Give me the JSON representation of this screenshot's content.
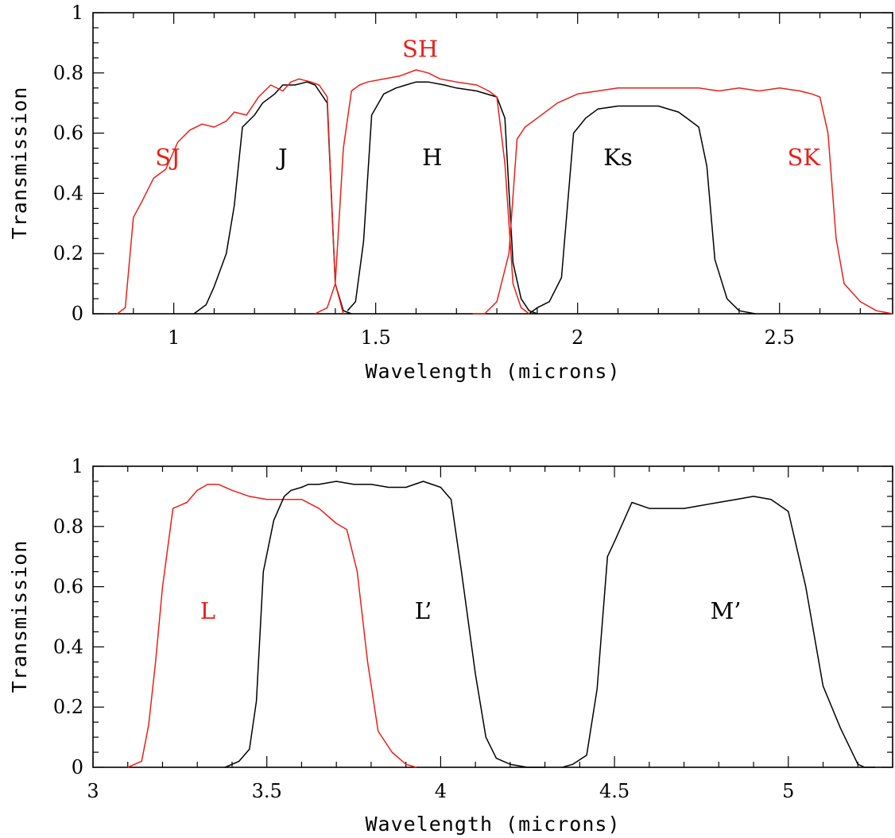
{
  "chart_data": [
    {
      "type": "line",
      "xlabel": "Wavelength (microns)",
      "ylabel": "Transmission",
      "xlim": [
        0.8,
        2.78
      ],
      "ylim": [
        0,
        1
      ],
      "xticks": [
        1,
        1.5,
        2,
        2.5
      ],
      "xtick_labels": [
        "1",
        "1.5",
        "2",
        "2.5"
      ],
      "yticks": [
        0,
        0.2,
        0.4,
        0.6,
        0.8,
        1
      ],
      "ytick_labels": [
        "0",
        "0.2",
        "0.4",
        "0.6",
        "0.8",
        "1"
      ],
      "grid": false,
      "series": [
        {
          "name": "J",
          "color": "#000000",
          "label_pos": [
            1.27,
            0.52
          ],
          "x": [
            1.05,
            1.08,
            1.1,
            1.13,
            1.15,
            1.17,
            1.2,
            1.22,
            1.25,
            1.27,
            1.3,
            1.33,
            1.35,
            1.38,
            1.4,
            1.42,
            1.44
          ],
          "y": [
            0.0,
            0.03,
            0.09,
            0.2,
            0.36,
            0.62,
            0.66,
            0.7,
            0.73,
            0.76,
            0.76,
            0.77,
            0.76,
            0.7,
            0.1,
            0.01,
            0.0
          ]
        },
        {
          "name": "H",
          "color": "#000000",
          "label_pos": [
            1.64,
            0.52
          ],
          "x": [
            1.43,
            1.45,
            1.47,
            1.49,
            1.52,
            1.55,
            1.6,
            1.63,
            1.67,
            1.7,
            1.75,
            1.8,
            1.82,
            1.84,
            1.86,
            1.88,
            1.9
          ],
          "y": [
            0.01,
            0.04,
            0.24,
            0.66,
            0.73,
            0.75,
            0.77,
            0.77,
            0.76,
            0.75,
            0.74,
            0.72,
            0.65,
            0.17,
            0.05,
            0.01,
            0.0
          ]
        },
        {
          "name": "Ks",
          "color": "#000000",
          "label_pos": [
            2.1,
            0.52
          ],
          "x": [
            1.88,
            1.9,
            1.93,
            1.96,
            1.99,
            2.02,
            2.05,
            2.1,
            2.15,
            2.2,
            2.25,
            2.28,
            2.3,
            2.32,
            2.34,
            2.37,
            2.4,
            2.44
          ],
          "y": [
            0.0,
            0.02,
            0.04,
            0.12,
            0.6,
            0.65,
            0.68,
            0.69,
            0.69,
            0.69,
            0.67,
            0.64,
            0.62,
            0.49,
            0.18,
            0.05,
            0.01,
            0.0
          ]
        },
        {
          "name": "SJ",
          "color": "#e8201a",
          "label_pos": [
            0.985,
            0.52
          ],
          "x": [
            0.86,
            0.88,
            0.9,
            0.92,
            0.95,
            0.98,
            1.01,
            1.04,
            1.07,
            1.1,
            1.13,
            1.15,
            1.18,
            1.21,
            1.24,
            1.27,
            1.29,
            1.31,
            1.34,
            1.36,
            1.38,
            1.4,
            1.42
          ],
          "y": [
            0.0,
            0.02,
            0.32,
            0.37,
            0.45,
            0.48,
            0.57,
            0.61,
            0.63,
            0.62,
            0.64,
            0.67,
            0.66,
            0.72,
            0.76,
            0.74,
            0.77,
            0.78,
            0.77,
            0.76,
            0.72,
            0.1,
            0.0
          ]
        },
        {
          "name": "SH",
          "color": "#e8201a",
          "label_pos": [
            1.61,
            0.88
          ],
          "x": [
            1.35,
            1.38,
            1.4,
            1.42,
            1.44,
            1.46,
            1.48,
            1.52,
            1.56,
            1.6,
            1.63,
            1.66,
            1.7,
            1.75,
            1.78,
            1.8,
            1.82,
            1.84,
            1.86,
            1.88
          ],
          "y": [
            0.0,
            0.02,
            0.1,
            0.55,
            0.74,
            0.76,
            0.77,
            0.78,
            0.79,
            0.81,
            0.8,
            0.78,
            0.77,
            0.76,
            0.74,
            0.72,
            0.5,
            0.1,
            0.02,
            0.0
          ]
        },
        {
          "name": "SK",
          "color": "#e8201a",
          "label_pos": [
            2.56,
            0.52
          ],
          "x": [
            1.74,
            1.77,
            1.8,
            1.83,
            1.85,
            1.87,
            1.9,
            1.95,
            2.0,
            2.05,
            2.1,
            2.2,
            2.3,
            2.35,
            2.4,
            2.45,
            2.5,
            2.55,
            2.58,
            2.6,
            2.62,
            2.64,
            2.66,
            2.7,
            2.74,
            2.78
          ],
          "y": [
            0.0,
            0.0,
            0.04,
            0.2,
            0.58,
            0.62,
            0.65,
            0.7,
            0.73,
            0.74,
            0.75,
            0.75,
            0.75,
            0.74,
            0.75,
            0.74,
            0.75,
            0.74,
            0.73,
            0.72,
            0.6,
            0.25,
            0.1,
            0.04,
            0.01,
            0.0
          ]
        }
      ]
    },
    {
      "type": "line",
      "xlabel": "Wavelength (microns)",
      "ylabel": "Transmission",
      "xlim": [
        3.0,
        5.3
      ],
      "ylim": [
        0,
        1
      ],
      "xticks": [
        3,
        3.5,
        4,
        4.5,
        5
      ],
      "xtick_labels": [
        "3",
        "3.5",
        "4",
        "4.5",
        "5"
      ],
      "yticks": [
        0,
        0.2,
        0.4,
        0.6,
        0.8,
        1
      ],
      "ytick_labels": [
        "0",
        "0.2",
        "0.4",
        "0.6",
        "0.8",
        "1"
      ],
      "grid": false,
      "series": [
        {
          "name": "L",
          "color": "#e8201a",
          "label_pos": [
            3.33,
            0.52
          ],
          "x": [
            3.1,
            3.14,
            3.16,
            3.18,
            3.2,
            3.23,
            3.27,
            3.3,
            3.33,
            3.36,
            3.4,
            3.45,
            3.5,
            3.55,
            3.6,
            3.65,
            3.7,
            3.73,
            3.76,
            3.79,
            3.82,
            3.86,
            3.9,
            3.93
          ],
          "y": [
            0.0,
            0.02,
            0.14,
            0.35,
            0.6,
            0.86,
            0.88,
            0.92,
            0.94,
            0.94,
            0.92,
            0.9,
            0.89,
            0.89,
            0.89,
            0.86,
            0.81,
            0.79,
            0.65,
            0.35,
            0.12,
            0.05,
            0.01,
            0.0
          ]
        },
        {
          "name": "L’",
          "color": "#000000",
          "label_pos": [
            3.95,
            0.52
          ],
          "x": [
            3.38,
            3.42,
            3.45,
            3.47,
            3.49,
            3.52,
            3.55,
            3.57,
            3.6,
            3.62,
            3.65,
            3.7,
            3.75,
            3.8,
            3.85,
            3.9,
            3.95,
            4.0,
            4.03,
            4.06,
            4.1,
            4.13,
            4.16,
            4.2,
            4.25,
            4.3
          ],
          "y": [
            0.0,
            0.02,
            0.06,
            0.22,
            0.65,
            0.82,
            0.9,
            0.92,
            0.93,
            0.94,
            0.94,
            0.95,
            0.94,
            0.94,
            0.93,
            0.93,
            0.95,
            0.93,
            0.89,
            0.65,
            0.31,
            0.1,
            0.03,
            0.01,
            0.0,
            0.0
          ]
        },
        {
          "name": "M’",
          "color": "#000000",
          "label_pos": [
            4.82,
            0.52
          ],
          "x": [
            4.35,
            4.38,
            4.42,
            4.45,
            4.48,
            4.5,
            4.55,
            4.6,
            4.7,
            4.8,
            4.85,
            4.9,
            4.95,
            5.0,
            5.05,
            5.1,
            5.15,
            5.2,
            5.22,
            5.25
          ],
          "y": [
            0.0,
            0.01,
            0.04,
            0.26,
            0.7,
            0.75,
            0.88,
            0.86,
            0.86,
            0.88,
            0.89,
            0.9,
            0.89,
            0.85,
            0.6,
            0.27,
            0.13,
            0.01,
            0.0,
            0.0
          ]
        }
      ]
    }
  ]
}
